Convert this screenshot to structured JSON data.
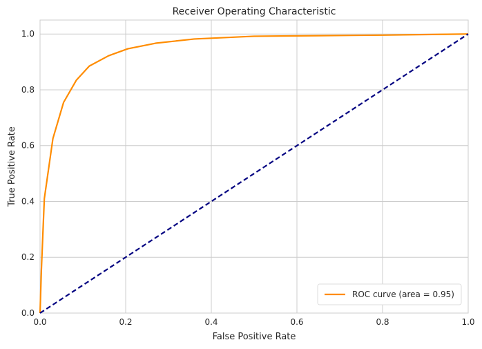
{
  "chart_data": {
    "type": "line",
    "title": "Receiver Operating Characteristic",
    "xlabel": "False Positive Rate",
    "ylabel": "True Positive Rate",
    "xlim": [
      0.0,
      1.0
    ],
    "ylim": [
      0.0,
      1.05
    ],
    "xticks": [
      "0.0",
      "0.2",
      "0.4",
      "0.6",
      "0.8",
      "1.0"
    ],
    "yticks": [
      "0.0",
      "0.2",
      "0.4",
      "0.6",
      "0.8",
      "1.0"
    ],
    "grid": true,
    "legend_position": "lower-right",
    "series": [
      {
        "name": "ROC curve (area = 0.95)",
        "color": "#ff8c00",
        "style": "solid",
        "x": [
          0.0,
          0.003,
          0.01,
          0.03,
          0.055,
          0.085,
          0.115,
          0.16,
          0.205,
          0.27,
          0.36,
          0.5,
          0.65,
          0.8,
          0.95,
          1.0
        ],
        "y": [
          0.0,
          0.15,
          0.41,
          0.625,
          0.755,
          0.835,
          0.885,
          0.922,
          0.947,
          0.967,
          0.982,
          0.992,
          0.994,
          0.996,
          0.999,
          1.0
        ]
      },
      {
        "name": "",
        "color": "#000080",
        "style": "dashed",
        "x": [
          0.0,
          1.0
        ],
        "y": [
          0.0,
          1.0
        ]
      }
    ]
  }
}
